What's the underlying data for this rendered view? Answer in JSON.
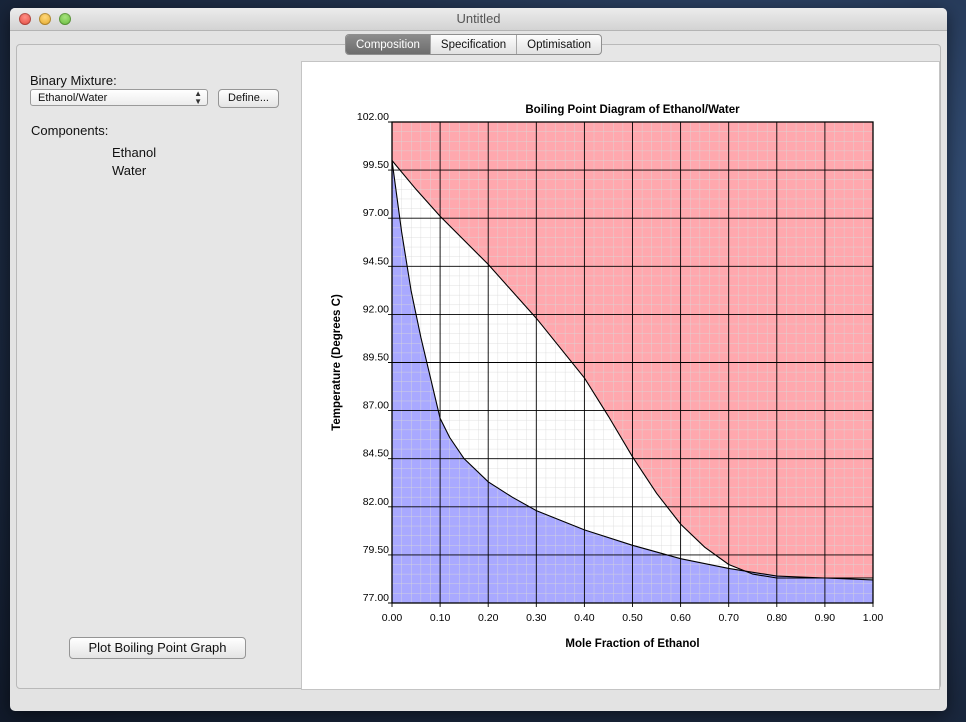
{
  "window": {
    "title": "Untitled"
  },
  "tabs": [
    {
      "label": "Composition",
      "active": true
    },
    {
      "label": "Specification",
      "active": false
    },
    {
      "label": "Optimisation",
      "active": false
    }
  ],
  "sidebar": {
    "mixture_label": "Binary Mixture:",
    "mixture_value": "Ethanol/Water",
    "define_label": "Define...",
    "components_label": "Components:",
    "components": [
      "Ethanol",
      "Water"
    ],
    "plot_button_label": "Plot Boiling Point Graph"
  },
  "colors": {
    "vapor_region": "#ffa8ae",
    "liquid_region": "#a9a9ff",
    "grid_major": "#000000",
    "grid_minor": "#d9d9d9"
  },
  "chart_data": {
    "type": "area",
    "title": "Boiling Point Diagram of Ethanol/Water",
    "xlabel": "Mole Fraction of Ethanol",
    "ylabel": "Temperature (Degrees C)",
    "xlim": [
      0,
      1
    ],
    "ylim": [
      77,
      102
    ],
    "xticks": [
      "0.00",
      "0.10",
      "0.20",
      "0.30",
      "0.40",
      "0.50",
      "0.60",
      "0.70",
      "0.80",
      "0.90",
      "1.00"
    ],
    "yticks": [
      "77.00",
      "79.50",
      "82.00",
      "84.50",
      "87.00",
      "89.50",
      "92.00",
      "94.50",
      "97.00",
      "99.50",
      "102.00"
    ],
    "grid": true,
    "series": [
      {
        "name": "",
        "role": "dew-point (vapour) curve",
        "x": [
          0.0,
          0.05,
          0.1,
          0.2,
          0.3,
          0.4,
          0.45,
          0.5,
          0.55,
          0.6,
          0.65,
          0.7,
          0.75,
          0.8,
          0.9,
          1.0
        ],
        "y": [
          100.0,
          98.5,
          97.1,
          94.6,
          91.8,
          88.7,
          86.7,
          84.6,
          82.7,
          81.1,
          79.9,
          79.0,
          78.5,
          78.3,
          78.3,
          78.3
        ]
      },
      {
        "name": "",
        "role": "bubble-point (liquid) curve",
        "x": [
          0.0,
          0.02,
          0.04,
          0.06,
          0.08,
          0.1,
          0.12,
          0.15,
          0.2,
          0.25,
          0.3,
          0.4,
          0.5,
          0.6,
          0.7,
          0.8,
          0.9,
          1.0
        ],
        "y": [
          100.0,
          96.3,
          93.2,
          90.8,
          88.7,
          86.6,
          85.6,
          84.5,
          83.3,
          82.5,
          81.8,
          80.8,
          80.0,
          79.3,
          78.8,
          78.4,
          78.3,
          78.2
        ]
      }
    ]
  }
}
